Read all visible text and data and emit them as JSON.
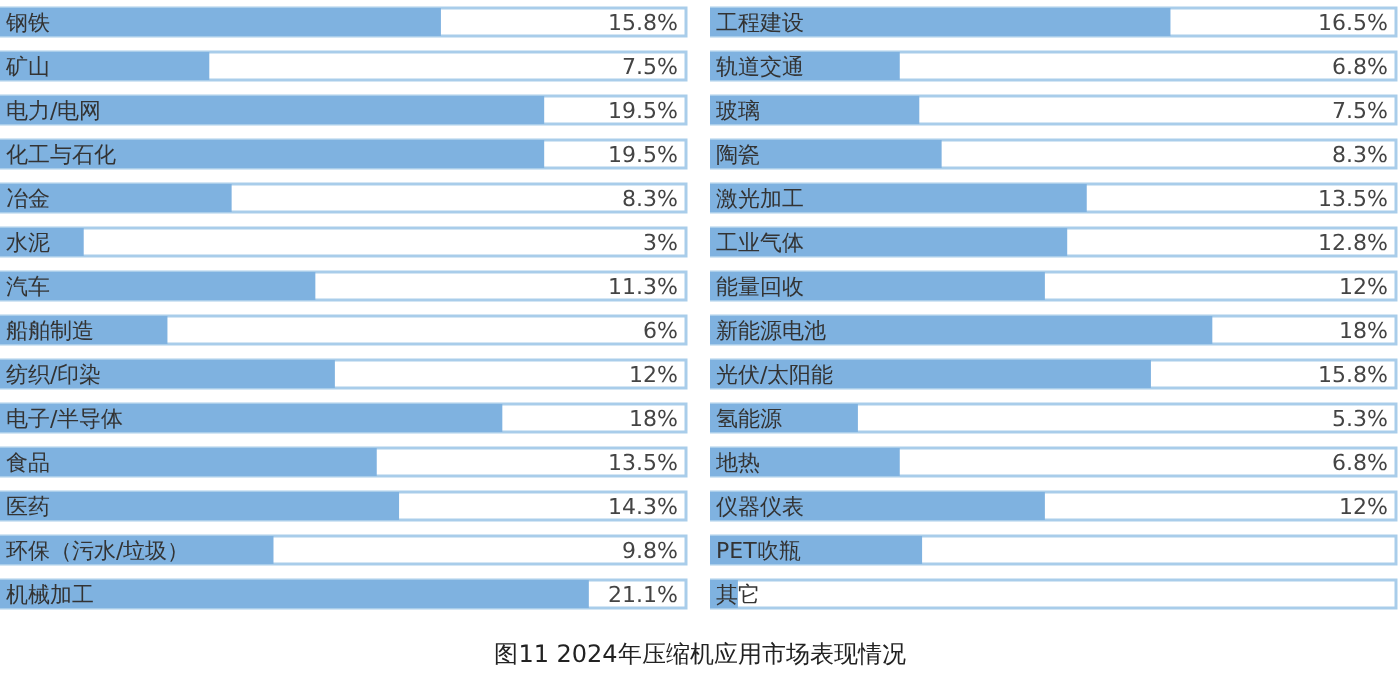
{
  "chart_data": [
    {
      "type": "bar",
      "orientation": "horizontal",
      "title": "图11 2024年压缩机应用市场表现情况",
      "categories": [
        "钢铁",
        "矿山",
        "电力/电网",
        "化工与石化",
        "冶金",
        "水泥",
        "汽车",
        "船舶制造",
        "纺织/印染",
        "电子/半导体",
        "食品",
        "医药",
        "环保（污水/垃圾）",
        "机械加工"
      ],
      "values": [
        15.8,
        7.5,
        19.5,
        19.5,
        8.3,
        3,
        11.3,
        6,
        12,
        18,
        13.5,
        14.3,
        9.8,
        21.1
      ],
      "value_labels": [
        "15.8%",
        "7.5%",
        "19.5%",
        "19.5%",
        "8.3%",
        "3%",
        "11.3%",
        "6%",
        "12%",
        "18%",
        "13.5%",
        "14.3%",
        "9.8%",
        "21.1%"
      ],
      "color": "#7fb2e0"
    },
    {
      "type": "bar",
      "orientation": "horizontal",
      "categories": [
        "工程建设",
        "轨道交通",
        "玻璃",
        "陶瓷",
        "激光加工",
        "工业气体",
        "能量回收",
        "新能源电池",
        "光伏/太阳能",
        "氢能源",
        "地热",
        "仪器仪表",
        "PET吹瓶",
        "其它"
      ],
      "values": [
        16.5,
        6.8,
        7.5,
        8.3,
        13.5,
        12.8,
        12,
        18,
        15.8,
        5.3,
        6.8,
        12,
        7.6,
        1
      ],
      "value_labels": [
        "16.5%",
        "6.8%",
        "7.5%",
        "8.3%",
        "13.5%",
        "12.8%",
        "12%",
        "18%",
        "15.8%",
        "5.3%",
        "6.8%",
        "12%",
        null,
        null
      ],
      "color": "#7fb2e0"
    }
  ]
}
